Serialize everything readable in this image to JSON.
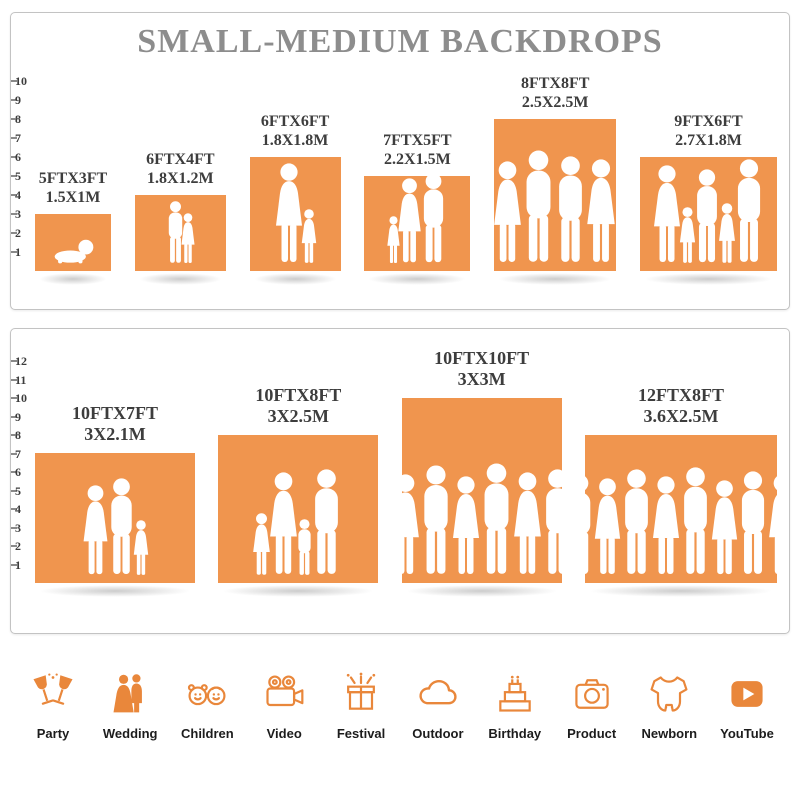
{
  "title": "SMALL-MEDIUM BACKDROPS",
  "colors": {
    "bar": "#F0954E",
    "icon": "#E9873B",
    "title": "#8D8D8D",
    "label": "#3D3D3D"
  },
  "panels": {
    "top": {
      "scale": {
        "min": 1,
        "max": 10
      },
      "bars": [
        {
          "size_label": "5FTX3FT",
          "metric_label": "1.5X1M",
          "width_ft": 5,
          "height_ft": 3,
          "figures": [
            {
              "t": "b",
              "ft": 1.4
            }
          ]
        },
        {
          "size_label": "6FTX4FT",
          "metric_label": "1.8X1.2M",
          "width_ft": 6,
          "height_ft": 4,
          "figures": [
            {
              "t": "m",
              "ft": 3.3
            },
            {
              "t": "f",
              "ft": 2.7
            }
          ]
        },
        {
          "size_label": "6FTX6FT",
          "metric_label": "1.8X1.8M",
          "width_ft": 6,
          "height_ft": 6,
          "figures": [
            {
              "t": "f",
              "ft": 5.3
            },
            {
              "t": "f",
              "ft": 2.9
            }
          ]
        },
        {
          "size_label": "7FTX5FT",
          "metric_label": "2.2X1.5M",
          "width_ft": 7,
          "height_ft": 5,
          "figures": [
            {
              "t": "f",
              "ft": 2.5
            },
            {
              "t": "f",
              "ft": 4.5
            },
            {
              "t": "m",
              "ft": 4.8
            }
          ]
        },
        {
          "size_label": "8FTX8FT",
          "metric_label": "2.5X2.5M",
          "width_ft": 8,
          "height_ft": 8,
          "figures": [
            {
              "t": "m",
              "ft": 5.6
            },
            {
              "t": "f",
              "ft": 5.4
            },
            {
              "t": "m",
              "ft": 6.0
            },
            {
              "t": "m",
              "ft": 5.7
            },
            {
              "t": "f",
              "ft": 5.5
            },
            {
              "t": "m",
              "ft": 5.8
            }
          ]
        },
        {
          "size_label": "9FTX6FT",
          "metric_label": "2.7X1.8M",
          "width_ft": 9,
          "height_ft": 6,
          "figures": [
            {
              "t": "f",
              "ft": 5.2
            },
            {
              "t": "f",
              "ft": 3.0
            },
            {
              "t": "m",
              "ft": 5.0
            },
            {
              "t": "f",
              "ft": 3.2
            },
            {
              "t": "m",
              "ft": 5.5
            }
          ]
        }
      ]
    },
    "bottom": {
      "scale": {
        "min": 1,
        "max": 12
      },
      "bars": [
        {
          "size_label": "10FTX7FT",
          "metric_label": "3X2.1M",
          "width_ft": 10,
          "height_ft": 7,
          "figures": [
            {
              "t": "f",
              "ft": 4.9
            },
            {
              "t": "m",
              "ft": 5.3
            },
            {
              "t": "f",
              "ft": 3.0
            }
          ]
        },
        {
          "size_label": "10FTX8FT",
          "metric_label": "3X2.5M",
          "width_ft": 10,
          "height_ft": 8,
          "figures": [
            {
              "t": "f",
              "ft": 3.4
            },
            {
              "t": "f",
              "ft": 5.6
            },
            {
              "t": "m",
              "ft": 3.1
            },
            {
              "t": "m",
              "ft": 5.8
            }
          ]
        },
        {
          "size_label": "10FTX10FT",
          "metric_label": "3X3M",
          "width_ft": 10,
          "height_ft": 10,
          "figures": [
            {
              "t": "f",
              "ft": 5.5
            },
            {
              "t": "m",
              "ft": 6.0
            },
            {
              "t": "f",
              "ft": 5.4
            },
            {
              "t": "m",
              "ft": 6.1
            },
            {
              "t": "f",
              "ft": 5.6
            },
            {
              "t": "m",
              "ft": 5.8
            }
          ]
        },
        {
          "size_label": "12FTX8FT",
          "metric_label": "3.6X2.5M",
          "width_ft": 12,
          "height_ft": 8,
          "figures": [
            {
              "t": "m",
              "ft": 5.5
            },
            {
              "t": "f",
              "ft": 5.3
            },
            {
              "t": "m",
              "ft": 5.8
            },
            {
              "t": "f",
              "ft": 5.4
            },
            {
              "t": "m",
              "ft": 5.9
            },
            {
              "t": "f",
              "ft": 5.2
            },
            {
              "t": "m",
              "ft": 5.7
            },
            {
              "t": "f",
              "ft": 5.5
            }
          ]
        }
      ]
    }
  },
  "footer": {
    "categories": [
      {
        "label": "Party",
        "icon": "party-icon"
      },
      {
        "label": "Wedding",
        "icon": "wedding-icon"
      },
      {
        "label": "Children",
        "icon": "children-icon"
      },
      {
        "label": "Video",
        "icon": "video-icon"
      },
      {
        "label": "Festival",
        "icon": "festival-icon"
      },
      {
        "label": "Outdoor",
        "icon": "outdoor-icon"
      },
      {
        "label": "Birthday",
        "icon": "birthday-icon"
      },
      {
        "label": "Product",
        "icon": "product-icon"
      },
      {
        "label": "Newborn",
        "icon": "newborn-icon"
      },
      {
        "label": "YouTube",
        "icon": "youtube-icon"
      }
    ]
  },
  "chart_data": [
    {
      "type": "bar",
      "title": "SMALL-MEDIUM BACKDROPS",
      "categories": [
        "5FTX3FT",
        "6FTX4FT",
        "6FTX6FT",
        "7FTX5FT",
        "8FTX8FT",
        "9FTX6FT"
      ],
      "values": [
        3,
        4,
        6,
        5,
        8,
        6
      ],
      "widths_ft": [
        5,
        6,
        6,
        7,
        8,
        9
      ],
      "metric_labels": [
        "1.5X1M",
        "1.8X1.2M",
        "1.8X1.8M",
        "2.2X1.5M",
        "2.5X2.5M",
        "2.7X1.8M"
      ],
      "xlabel": "",
      "ylabel": "",
      "ylim": [
        0,
        10
      ],
      "tick_labels": [
        1,
        2,
        3,
        4,
        5,
        6,
        7,
        8,
        9,
        10
      ]
    },
    {
      "type": "bar",
      "title": "",
      "categories": [
        "10FTX7FT",
        "10FTX8FT",
        "10FTX10FT",
        "12FTX8FT"
      ],
      "values": [
        7,
        8,
        10,
        8
      ],
      "widths_ft": [
        10,
        10,
        10,
        12
      ],
      "metric_labels": [
        "3X2.1M",
        "3X2.5M",
        "3X3M",
        "3.6X2.5M"
      ],
      "xlabel": "",
      "ylabel": "",
      "ylim": [
        0,
        12
      ],
      "tick_labels": [
        1,
        2,
        3,
        4,
        5,
        6,
        7,
        8,
        9,
        10,
        11,
        12
      ]
    }
  ]
}
